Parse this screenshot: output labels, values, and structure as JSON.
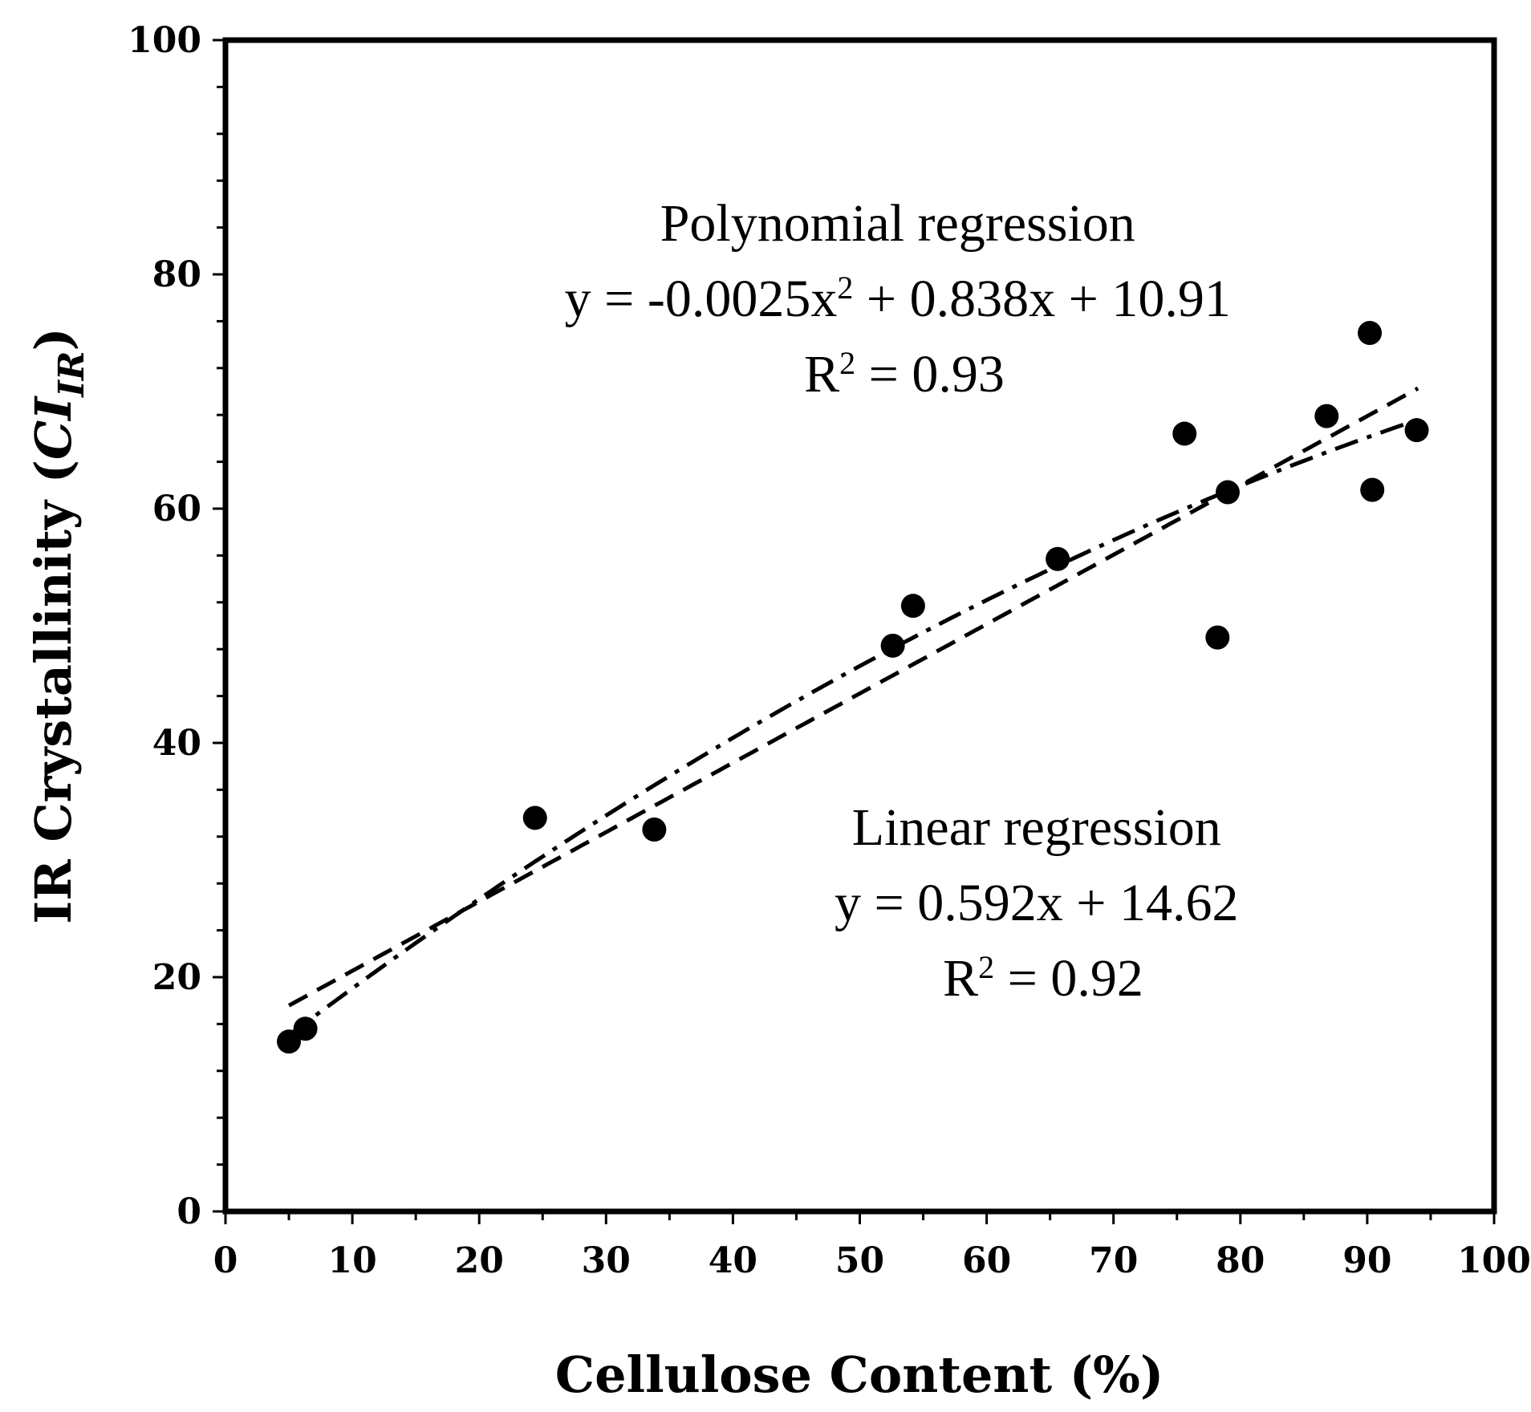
{
  "chart_data": {
    "type": "scatter",
    "title": "",
    "xlabel": "Cellulose Content (%)",
    "ylabel_main": "IR Crystallinity (",
    "ylabel_italic": "CI",
    "ylabel_sub": "IR",
    "ylabel_close": ")",
    "xlim": [
      0,
      100
    ],
    "ylim": [
      0,
      100
    ],
    "xticks": [
      0,
      10,
      20,
      30,
      40,
      50,
      60,
      70,
      80,
      90,
      100
    ],
    "yticks": [
      0,
      20,
      40,
      60,
      80,
      100
    ],
    "grid": false,
    "series": [
      {
        "name": "samples",
        "points": [
          {
            "x": 5,
            "y": 14.5
          },
          {
            "x": 6.3,
            "y": 15.6
          },
          {
            "x": 24.4,
            "y": 33.6
          },
          {
            "x": 33.8,
            "y": 32.6
          },
          {
            "x": 52.6,
            "y": 48.3
          },
          {
            "x": 54.2,
            "y": 51.7
          },
          {
            "x": 65.6,
            "y": 55.7
          },
          {
            "x": 75.6,
            "y": 66.4
          },
          {
            "x": 78.2,
            "y": 49.0
          },
          {
            "x": 79.0,
            "y": 61.4
          },
          {
            "x": 86.8,
            "y": 67.9
          },
          {
            "x": 90.2,
            "y": 75.0
          },
          {
            "x": 90.4,
            "y": 61.6
          },
          {
            "x": 93.9,
            "y": 66.7
          }
        ]
      }
    ],
    "fits": [
      {
        "name": "Linear regression",
        "style": "dashed",
        "coeffs": [
          0,
          0.592,
          14.62
        ],
        "x_range": [
          5,
          94
        ]
      },
      {
        "name": "Polynomial regression",
        "style": "dash-dot",
        "coeffs": [
          -0.0025,
          0.838,
          10.91
        ],
        "x_range": [
          5,
          94
        ]
      }
    ],
    "annotations": {
      "poly_title": "Polynomial regression",
      "poly_eq_pre": "y = -0.0025x",
      "poly_eq_sup": "2",
      "poly_eq_post": " + 0.838x + 10.91",
      "poly_r2_pre": "R",
      "poly_r2_sup": "2",
      "poly_r2_post": " = 0.93",
      "lin_title": "Linear regression",
      "lin_eq": "y = 0.592x + 14.62",
      "lin_r2_pre": "R",
      "lin_r2_sup": "2",
      "lin_r2_post": " = 0.92"
    }
  }
}
